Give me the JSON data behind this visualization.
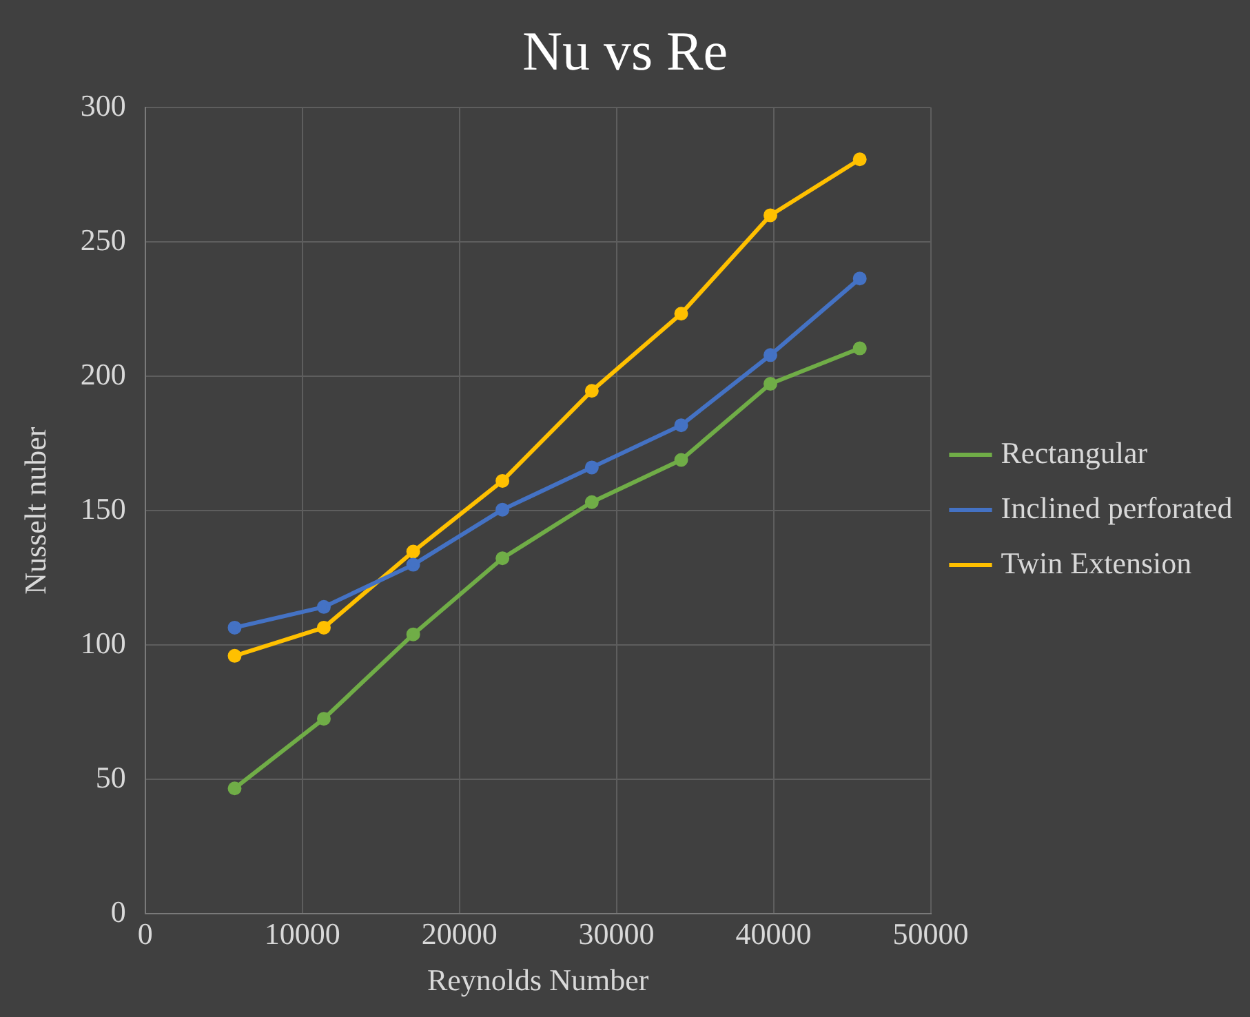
{
  "chart_data": {
    "type": "line",
    "title": "Nu vs Re",
    "xlabel": "Reynolds Number",
    "ylabel": "Nusselt nuber",
    "x": [
      5690,
      11370,
      17060,
      22740,
      28430,
      34120,
      39800,
      45490
    ],
    "series": [
      {
        "name": "Rectangular",
        "color": "#70ad47",
        "values": [
          46.7,
          72.6,
          104,
          132.3,
          153.2,
          168.9,
          197.2,
          210.4
        ]
      },
      {
        "name": "Inclined perforated",
        "color": "#4472c4",
        "values": [
          106.5,
          114.2,
          129.9,
          150.4,
          166.1,
          181.8,
          207.9,
          236.4
        ]
      },
      {
        "name": "Twin Extension",
        "color": "#ffc000",
        "values": [
          96,
          106.5,
          134.8,
          161.1,
          194.6,
          223.3,
          259.9,
          280.7
        ]
      }
    ],
    "xlim": [
      0,
      50000
    ],
    "xticks": [
      0,
      10000,
      20000,
      30000,
      40000,
      50000
    ],
    "ylim": [
      0,
      300
    ],
    "yticks": [
      0,
      50,
      100,
      150,
      200,
      250,
      300
    ],
    "grid": true,
    "legend": "right",
    "marker": "circle",
    "line_style": "solid"
  }
}
